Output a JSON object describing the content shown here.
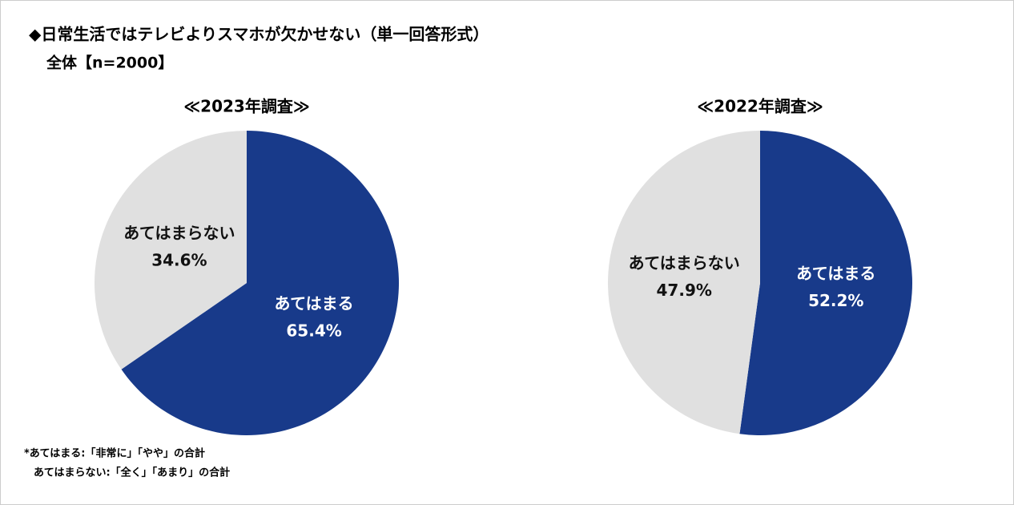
{
  "title": "◆日常生活ではテレビよりスマホが欠かせない（単一回答形式）",
  "subtitle": "全体【n=2000】",
  "notes": [
    "*あてはまる:「非常に」「やや」の合計",
    "あてはまらない:「全く」「あまり」の合計"
  ],
  "chart_data": [
    {
      "type": "pie",
      "title": "≪2023年調査≫",
      "categories": [
        "あてはまる",
        "あてはまらない"
      ],
      "values": [
        65.4,
        34.6
      ],
      "value_labels": [
        "65.4%",
        "34.6%"
      ],
      "colors": [
        "#183a8a",
        "#e0e0e0"
      ]
    },
    {
      "type": "pie",
      "title": "≪2022年調査≫",
      "categories": [
        "あてはまる",
        "あてはまらない"
      ],
      "values": [
        52.2,
        47.9
      ],
      "value_labels": [
        "52.2%",
        "47.9%"
      ],
      "colors": [
        "#183a8a",
        "#e0e0e0"
      ]
    }
  ]
}
